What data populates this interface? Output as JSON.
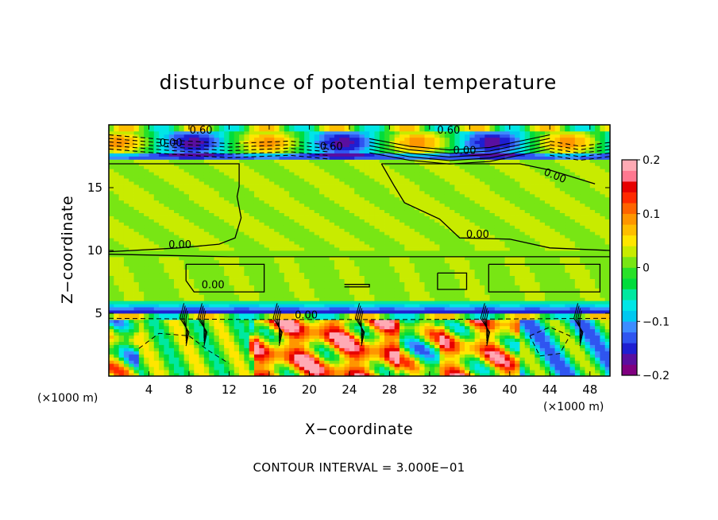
{
  "chart_data": {
    "type": "heatmap",
    "title": "disturbunce of potential temperature",
    "xlabel": "X−coordinate",
    "ylabel": "Z−coordinate",
    "x_unit": "(×1000 m)",
    "z_unit": "(×1000 m)",
    "xlim": [
      0,
      50
    ],
    "zlim": [
      0,
      20
    ],
    "x_ticks": [
      "4",
      "8",
      "12",
      "16",
      "20",
      "24",
      "28",
      "32",
      "36",
      "40",
      "44",
      "48"
    ],
    "x_tick_values": [
      4,
      8,
      12,
      16,
      20,
      24,
      28,
      32,
      36,
      40,
      44,
      48
    ],
    "z_ticks": [
      "5",
      "10",
      "15"
    ],
    "z_tick_values": [
      5,
      10,
      15
    ],
    "colorbar": {
      "min": -0.2,
      "max": 0.2,
      "tick_labels": [
        "0.2",
        "0.1",
        "0",
        "−0.1",
        "−0.2"
      ],
      "tick_values": [
        0.2,
        0.1,
        0,
        -0.1,
        -0.2
      ],
      "colors": [
        "#800080",
        "#5a0fa0",
        "#1f1fd2",
        "#2f55f0",
        "#3c8cff",
        "#00c8f0",
        "#00e6e6",
        "#00e8a0",
        "#00dc3c",
        "#28e128",
        "#78e614",
        "#c8eb00",
        "#ffe600",
        "#ffbe00",
        "#ff9600",
        "#ff6400",
        "#ff2a00",
        "#e60000",
        "#ff7890",
        "#ffaab4"
      ]
    },
    "contour_labels": [
      "0.60",
      "0.60",
      "0.00",
      "0.60",
      "0.00",
      "0.00",
      "0.00",
      "0.00",
      "0.00",
      "0.00"
    ],
    "contour_interval_text": "CONTOUR INTERVAL = 3.000E−01"
  }
}
